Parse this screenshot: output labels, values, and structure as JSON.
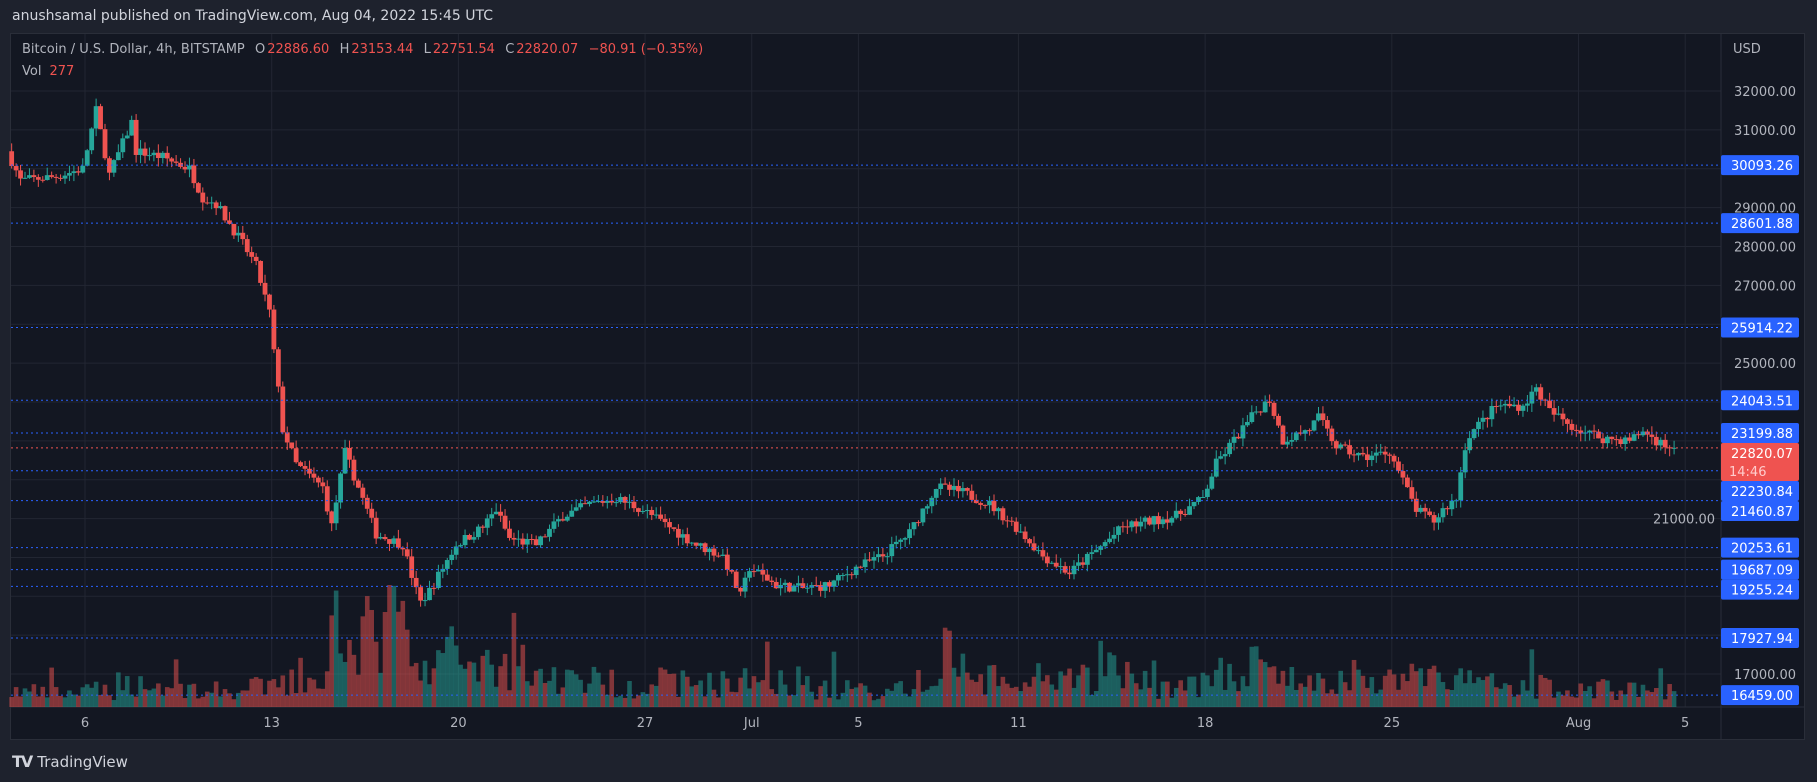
{
  "published": "anushsamal published on TradingView.com, Aug 04, 2022 15:45 UTC",
  "legend": {
    "symbol": "Bitcoin / U.S. Dollar, 4h, BITSTAMP",
    "o_label": "O",
    "open": "22886.60",
    "h_label": "H",
    "high": "23153.44",
    "l_label": "L",
    "low": "22751.54",
    "c_label": "C",
    "close": "22820.07",
    "change": "−80.91 (−0.35%)",
    "vol_label": "Vol",
    "vol_value": "277"
  },
  "currency": "USD",
  "brand": "TradingView",
  "colors": {
    "up": "#26a69a",
    "down": "#ef5350",
    "level": "#2962ff",
    "last": "#ef5350",
    "bg": "#131722",
    "grid": "#222632"
  },
  "chart_data": {
    "type": "candlestick",
    "interval": "4h",
    "ylim": [
      16100,
      32900
    ],
    "grid": true,
    "y_ticks": [
      "32000.00",
      "31000.00",
      "29000.00",
      "28000.00",
      "27000.00",
      "25000.00",
      "21000.00",
      "17000.00"
    ],
    "y_grid": [
      17000,
      18000,
      19000,
      20000,
      21000,
      22000,
      23000,
      24000,
      25000,
      26000,
      27000,
      28000,
      29000,
      30000,
      31000,
      32000
    ],
    "x_ticks": [
      {
        "label": "6",
        "date": "2022-06-06"
      },
      {
        "label": "13",
        "date": "2022-06-13"
      },
      {
        "label": "20",
        "date": "2022-06-20"
      },
      {
        "label": "27",
        "date": "2022-06-27"
      },
      {
        "label": "Jul",
        "date": "2022-07-01"
      },
      {
        "label": "5",
        "date": "2022-07-05"
      },
      {
        "label": "11",
        "date": "2022-07-11"
      },
      {
        "label": "18",
        "date": "2022-07-18"
      },
      {
        "label": "25",
        "date": "2022-07-25"
      },
      {
        "label": "Aug",
        "date": "2022-08-01"
      },
      {
        "label": "5",
        "date": "2022-08-05"
      }
    ],
    "price_path": [
      [
        "2022-06-03T04:00",
        30450
      ],
      [
        "2022-06-03T16:00",
        29700
      ],
      [
        "2022-06-05T00:00",
        29800
      ],
      [
        "2022-06-06T00:00",
        30000
      ],
      [
        "2022-06-06T12:00",
        31500
      ],
      [
        "2022-06-07T00:00",
        29850
      ],
      [
        "2022-06-07T20:00",
        31200
      ],
      [
        "2022-06-08T00:00",
        30450
      ],
      [
        "2022-06-09T00:00",
        30300
      ],
      [
        "2022-06-10T00:00",
        30000
      ],
      [
        "2022-06-10T12:00",
        29260
      ],
      [
        "2022-06-11T00:00",
        29100
      ],
      [
        "2022-06-12T00:00",
        28070
      ],
      [
        "2022-06-12T12:00",
        27500
      ],
      [
        "2022-06-13T00:00",
        26300
      ],
      [
        "2022-06-13T06:00",
        24800
      ],
      [
        "2022-06-13T12:00",
        23300
      ],
      [
        "2022-06-14T00:00",
        22400
      ],
      [
        "2022-06-15T00:00",
        21800
      ],
      [
        "2022-06-15T08:00",
        20800
      ],
      [
        "2022-06-15T20:00",
        22700
      ],
      [
        "2022-06-16T00:00",
        22400
      ],
      [
        "2022-06-17T00:00",
        20600
      ],
      [
        "2022-06-18T00:00",
        20330
      ],
      [
        "2022-06-18T12:00",
        19140
      ],
      [
        "2022-06-18T16:00",
        18840
      ],
      [
        "2022-06-19T00:00",
        19140
      ],
      [
        "2022-06-20T00:00",
        20330
      ],
      [
        "2022-06-21T00:00",
        20780
      ],
      [
        "2022-06-21T12:00",
        21230
      ],
      [
        "2022-06-22T00:00",
        20480
      ],
      [
        "2022-06-23T00:00",
        20330
      ],
      [
        "2022-06-24T00:00",
        21070
      ],
      [
        "2022-06-25T00:00",
        21370
      ],
      [
        "2022-06-26T00:00",
        21520
      ],
      [
        "2022-06-27T00:00",
        21230
      ],
      [
        "2022-06-28T00:00",
        20780
      ],
      [
        "2022-06-29T00:00",
        20330
      ],
      [
        "2022-06-30T00:00",
        20040
      ],
      [
        "2022-06-30T16:00",
        19000
      ],
      [
        "2022-07-01T00:00",
        19740
      ],
      [
        "2022-07-02T00:00",
        19290
      ],
      [
        "2022-07-03T00:00",
        19200
      ],
      [
        "2022-07-04T00:00",
        19290
      ],
      [
        "2022-07-05T00:00",
        19740
      ],
      [
        "2022-07-06T00:00",
        20040
      ],
      [
        "2022-07-07T00:00",
        20630
      ],
      [
        "2022-07-08T00:00",
        21820
      ],
      [
        "2022-07-09T00:00",
        21670
      ],
      [
        "2022-07-10T00:00",
        21370
      ],
      [
        "2022-07-11T00:00",
        20780
      ],
      [
        "2022-07-12T00:00",
        20040
      ],
      [
        "2022-07-13T00:00",
        19600
      ],
      [
        "2022-07-14T00:00",
        20180
      ],
      [
        "2022-07-15T00:00",
        20780
      ],
      [
        "2022-07-16T00:00",
        20930
      ],
      [
        "2022-07-17T00:00",
        21070
      ],
      [
        "2022-07-18T00:00",
        21520
      ],
      [
        "2022-07-18T12:00",
        22420
      ],
      [
        "2022-07-19T12:00",
        23310
      ],
      [
        "2022-07-20T00:00",
        23760
      ],
      [
        "2022-07-20T12:00",
        24060
      ],
      [
        "2022-07-21T00:00",
        23010
      ],
      [
        "2022-07-22T00:00",
        23310
      ],
      [
        "2022-07-22T08:00",
        23600
      ],
      [
        "2022-07-23T00:00",
        22860
      ],
      [
        "2022-07-24T00:00",
        22570
      ],
      [
        "2022-07-25T00:00",
        22720
      ],
      [
        "2022-07-25T12:00",
        21970
      ],
      [
        "2022-07-26T00:00",
        21230
      ],
      [
        "2022-07-26T16:00",
        20930
      ],
      [
        "2022-07-27T00:00",
        21230
      ],
      [
        "2022-07-27T12:00",
        21520
      ],
      [
        "2022-07-27T20:00",
        22860
      ],
      [
        "2022-07-28T00:00",
        23160
      ],
      [
        "2022-07-29T00:00",
        23900
      ],
      [
        "2022-07-30T00:00",
        23900
      ],
      [
        "2022-07-30T12:00",
        24350
      ],
      [
        "2022-07-31T00:00",
        23760
      ],
      [
        "2022-08-01T00:00",
        23310
      ],
      [
        "2022-08-02T00:00",
        23070
      ],
      [
        "2022-08-03T00:00",
        23010
      ],
      [
        "2022-08-03T12:00",
        23250
      ],
      [
        "2022-08-04T00:00",
        23010
      ],
      [
        "2022-08-04T12:00",
        22820
      ]
    ],
    "daily_volume": [
      150,
      130,
      140,
      170,
      230,
      200,
      180,
      160,
      150,
      190,
      210,
      260,
      900,
      700,
      800,
      330,
      520,
      460,
      380,
      330,
      280,
      260,
      230,
      210,
      250,
      240,
      230,
      250,
      300,
      260,
      180,
      170,
      150,
      200,
      230,
      380,
      260,
      230,
      200,
      240,
      280,
      360,
      230,
      200,
      230,
      320,
      380,
      330,
      260,
      230,
      250,
      220,
      380,
      300,
      250,
      240,
      230,
      200,
      190,
      180,
      170,
      160,
      150
    ],
    "levels": [
      "30093.26",
      "28601.88",
      "25914.22",
      "24043.51",
      "23199.88",
      "22230.84",
      "21460.87",
      "20253.61",
      "19687.09",
      "19255.24",
      "17927.94",
      "16459.00"
    ],
    "last_price": "22820.07",
    "countdown": "14:46"
  }
}
